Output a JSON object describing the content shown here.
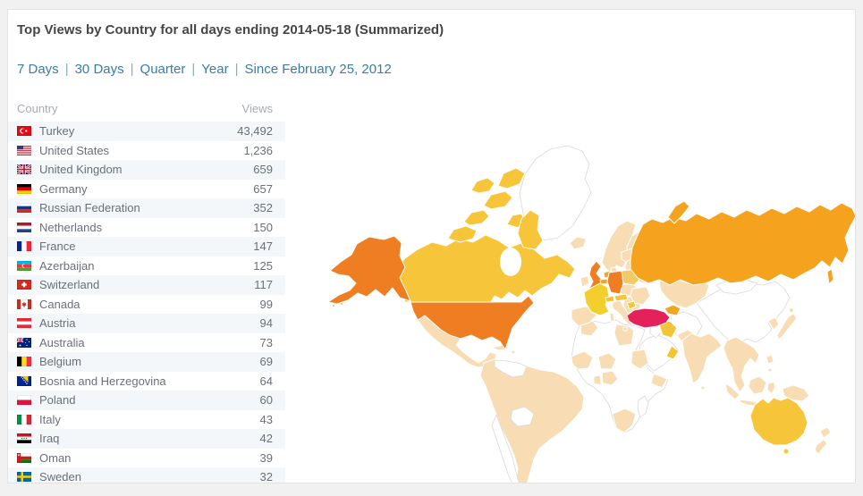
{
  "panel": {
    "title": "Top Views by Country for all days ending 2014-05-18 (Summarized)",
    "period_links": [
      "7 Days",
      "30 Days",
      "Quarter",
      "Year",
      "Since February 25, 2012"
    ],
    "separator": "|"
  },
  "table": {
    "headers": {
      "country": "Country",
      "views": "Views"
    }
  },
  "chart_data": {
    "type": "table",
    "subtype": "choropleth-world-map",
    "title": "Top Views by Country for all days ending 2014-05-18 (Summarized)",
    "columns": [
      "Country",
      "Views"
    ],
    "rows": [
      {
        "country": "Turkey",
        "views": 43492,
        "display": "43,492",
        "flag": {
          "kind": "turkey",
          "bg": "#e30a17"
        }
      },
      {
        "country": "United States",
        "views": 1236,
        "display": "1,236",
        "flag": {
          "kind": "us",
          "stripe": "#b22234",
          "white": "#ffffff",
          "canton": "#3c3b6e"
        }
      },
      {
        "country": "United Kingdom",
        "views": 659,
        "display": "659",
        "flag": {
          "kind": "uk",
          "bg": "#00247d",
          "cross": "#cf142b"
        }
      },
      {
        "country": "Germany",
        "views": 657,
        "display": "657",
        "flag": {
          "kind": "h",
          "colors": [
            "#000000",
            "#dd0000",
            "#ffce00"
          ]
        }
      },
      {
        "country": "Russian Federation",
        "views": 352,
        "display": "352",
        "flag": {
          "kind": "h",
          "colors": [
            "#ffffff",
            "#0039a6",
            "#d52b1e"
          ]
        }
      },
      {
        "country": "Netherlands",
        "views": 150,
        "display": "150",
        "flag": {
          "kind": "h",
          "colors": [
            "#ae1c28",
            "#ffffff",
            "#21468b"
          ]
        }
      },
      {
        "country": "France",
        "views": 147,
        "display": "147",
        "flag": {
          "kind": "v",
          "colors": [
            "#002395",
            "#ffffff",
            "#ed2939"
          ]
        }
      },
      {
        "country": "Azerbaijan",
        "views": 125,
        "display": "125",
        "flag": {
          "kind": "az",
          "colors": [
            "#00b9e4",
            "#ef3340",
            "#509e2f"
          ]
        }
      },
      {
        "country": "Switzerland",
        "views": 117,
        "display": "117",
        "flag": {
          "kind": "ch",
          "bg": "#d52b1e"
        }
      },
      {
        "country": "Canada",
        "views": 99,
        "display": "99",
        "flag": {
          "kind": "ca",
          "red": "#d52b1e"
        }
      },
      {
        "country": "Austria",
        "views": 94,
        "display": "94",
        "flag": {
          "kind": "h",
          "colors": [
            "#ed2939",
            "#ffffff",
            "#ed2939"
          ]
        }
      },
      {
        "country": "Australia",
        "views": 73,
        "display": "73",
        "flag": {
          "kind": "au",
          "bg": "#00247d",
          "jack_red": "#cf142b"
        }
      },
      {
        "country": "Belgium",
        "views": 69,
        "display": "69",
        "flag": {
          "kind": "v",
          "colors": [
            "#000000",
            "#fdda24",
            "#ef3340"
          ]
        }
      },
      {
        "country": "Bosnia and Herzegovina",
        "views": 64,
        "display": "64",
        "flag": {
          "kind": "ba",
          "bg": "#002395",
          "tri": "#fecb00"
        }
      },
      {
        "country": "Poland",
        "views": 60,
        "display": "60",
        "flag": {
          "kind": "h",
          "colors": [
            "#ffffff",
            "#dc143c"
          ]
        }
      },
      {
        "country": "Italy",
        "views": 43,
        "display": "43",
        "flag": {
          "kind": "v",
          "colors": [
            "#009246",
            "#ffffff",
            "#ce2b37"
          ]
        }
      },
      {
        "country": "Iraq",
        "views": 42,
        "display": "42",
        "flag": {
          "kind": "iq",
          "colors": [
            "#ce1126",
            "#ffffff",
            "#000000"
          ],
          "script": "#007a3d"
        }
      },
      {
        "country": "Oman",
        "views": 39,
        "display": "39",
        "flag": {
          "kind": "om",
          "red": "#db161b",
          "green": "#008000"
        }
      },
      {
        "country": "Sweden",
        "views": 32,
        "display": "32",
        "flag": {
          "kind": "se",
          "bg": "#006aa7",
          "cross": "#fecc00"
        }
      }
    ]
  },
  "map": {
    "palette": {
      "none": "#ffffff",
      "low": "#f8dcb4",
      "gold_pale": "#f2cb66",
      "gold": "#f3c435",
      "amber": "#f6c53a",
      "amber_deep": "#f0a625",
      "yellow": "#f3cf2e",
      "orange": "#f5a21f",
      "orange_deep": "#ef7d22",
      "crimson": "#e4215a"
    }
  }
}
